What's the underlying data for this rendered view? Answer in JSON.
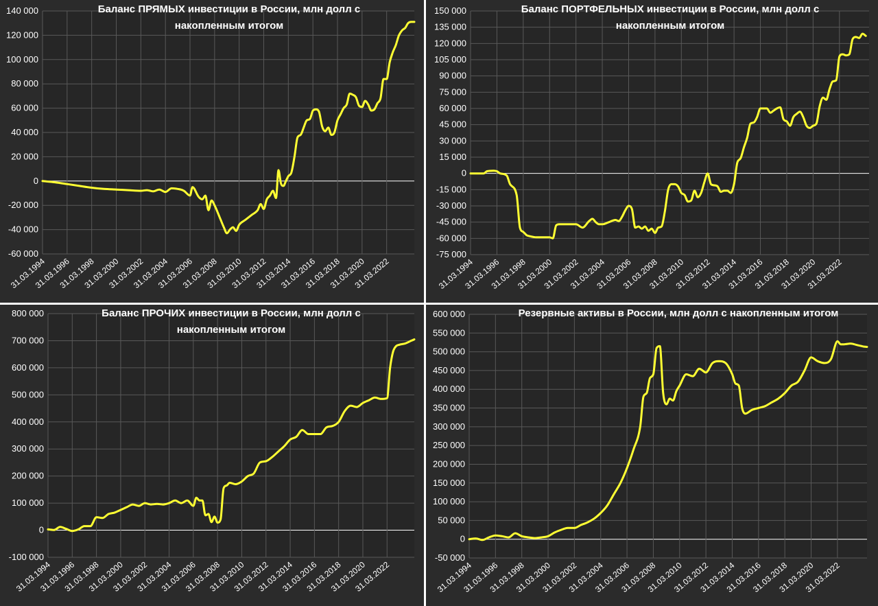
{
  "chart_data": [
    {
      "id": "direct",
      "type": "line",
      "title_lines": [
        "Баланс ПРЯМЫХ инвестиции в России, млн долл с",
        "накопленным итогом"
      ],
      "ylim": [
        -60000,
        140000
      ],
      "ystep": 20000,
      "ytick_labels": [
        "-60 000",
        "-40 000",
        "-20 000",
        "0",
        "20 000",
        "40 000",
        "60 000",
        "80 000",
        "100 000",
        "120 000",
        "140 000"
      ],
      "xlim": [
        1994.0,
        2024.25
      ],
      "x_tick_labels": [
        "31.03.1994",
        "31.03.1996",
        "31.03.1998",
        "31.03.2000",
        "31.03.2002",
        "31.03.2004",
        "31.03.2006",
        "31.03.2008",
        "31.03.2010",
        "31.03.2012",
        "31.03.2014",
        "31.03.2016",
        "31.03.2018",
        "31.03.2020",
        "31.03.2022"
      ],
      "x_tick_years": [
        1994,
        1996,
        1998,
        2000,
        2002,
        2004,
        2006,
        2008,
        2010,
        2012,
        2014,
        2016,
        2018,
        2020,
        2022
      ],
      "grid": true,
      "series": [
        {
          "color": "#ffff33",
          "x": [
            1994.0,
            1995.0,
            1996.0,
            1997.0,
            1998.0,
            1999.0,
            2000.0,
            2001.0,
            2002.0,
            2002.5,
            2003.0,
            2003.5,
            2004.0,
            2004.5,
            2005.0,
            2005.5,
            2006.0,
            2006.2,
            2006.7,
            2007.0,
            2007.25,
            2007.5,
            2007.75,
            2008.0,
            2008.5,
            2008.75,
            2009.0,
            2009.25,
            2009.5,
            2009.75,
            2010.0,
            2010.5,
            2011.0,
            2011.5,
            2011.75,
            2012.0,
            2012.25,
            2012.5,
            2012.75,
            2013.0,
            2013.2,
            2013.4,
            2013.6,
            2013.8,
            2014.0,
            2014.25,
            2014.5,
            2014.75,
            2015.0,
            2015.25,
            2015.5,
            2015.75,
            2016.0,
            2016.25,
            2016.5,
            2016.75,
            2017.0,
            2017.25,
            2017.5,
            2017.75,
            2018.0,
            2018.25,
            2018.5,
            2018.75,
            2019.0,
            2019.25,
            2019.5,
            2019.75,
            2020.0,
            2020.25,
            2020.5,
            2020.75,
            2021.0,
            2021.25,
            2021.5,
            2021.75,
            2022.0,
            2022.25,
            2022.5,
            2022.75,
            2023.0,
            2023.25,
            2023.5,
            2023.75,
            2024.0,
            2024.25
          ],
          "values": [
            0,
            -1000,
            -2500,
            -4000,
            -5500,
            -6500,
            -7000,
            -7500,
            -8000,
            -7500,
            -8500,
            -7000,
            -9000,
            -6000,
            -6500,
            -8000,
            -12000,
            -5000,
            -13000,
            -15000,
            -12000,
            -24000,
            -16000,
            -20000,
            -32000,
            -38000,
            -43000,
            -40000,
            -38000,
            -41000,
            -36000,
            -32000,
            -28000,
            -24000,
            -19000,
            -23000,
            -15000,
            -12000,
            -8000,
            -14000,
            9000,
            -2000,
            -4000,
            0,
            4000,
            7000,
            20000,
            36000,
            38000,
            44000,
            50000,
            51000,
            58000,
            59000,
            57000,
            45000,
            41000,
            44000,
            38000,
            40000,
            50000,
            55000,
            60000,
            63000,
            72000,
            71000,
            69000,
            62000,
            61000,
            66000,
            63000,
            58000,
            59000,
            64000,
            68000,
            84000,
            84000,
            98000,
            106000,
            112000,
            120000,
            124000,
            126000,
            130000,
            131000,
            131000
          ]
        }
      ]
    },
    {
      "id": "portfolio",
      "type": "line",
      "title_lines": [
        "Баланс ПОРТФЕЛЬНЫХ инвестиции в России, млн долл с",
        "накопленным итогом"
      ],
      "ylim": [
        -75000,
        150000
      ],
      "ystep": 15000,
      "ytick_labels": [
        "-75 000",
        "-60 000",
        "-45 000",
        "-30 000",
        "-15 000",
        "0",
        "15 000",
        "30 000",
        "45 000",
        "60 000",
        "75 000",
        "90 000",
        "105 000",
        "120 000",
        "135 000",
        "150 000"
      ],
      "xlim": [
        1994.0,
        2024.25
      ],
      "x_tick_labels": [
        "31.03.1994",
        "31.03.1996",
        "31.03.1998",
        "31.03.2000",
        "31.03.2002",
        "31.03.2004",
        "31.03.2006",
        "31.03.2008",
        "31.03.2010",
        "31.03.2012",
        "31.03.2014",
        "31.03.2016",
        "31.03.2018",
        "31.03.2020",
        "31.03.2022"
      ],
      "x_tick_years": [
        1994,
        1996,
        1998,
        2000,
        2002,
        2004,
        2006,
        2008,
        2010,
        2012,
        2014,
        2016,
        2018,
        2020,
        2022
      ],
      "grid": true,
      "series": [
        {
          "color": "#ffff33",
          "x": [
            1994.0,
            1995.0,
            1995.25,
            1995.75,
            1996.0,
            1996.25,
            1996.75,
            1997.0,
            1997.5,
            1997.75,
            1998.0,
            1998.25,
            1998.5,
            1999.0,
            1999.5,
            2000.0,
            2000.25,
            2000.5,
            2000.75,
            2001.0,
            2001.5,
            2002.0,
            2002.5,
            2003.0,
            2003.25,
            2003.5,
            2003.75,
            2004.0,
            2004.5,
            2005.0,
            2005.25,
            2005.5,
            2005.75,
            2006.0,
            2006.25,
            2006.5,
            2006.75,
            2007.0,
            2007.25,
            2007.5,
            2007.75,
            2008.0,
            2008.25,
            2008.5,
            2008.75,
            2009.0,
            2009.25,
            2009.5,
            2009.75,
            2010.0,
            2010.25,
            2010.5,
            2010.75,
            2011.0,
            2011.25,
            2011.5,
            2011.75,
            2012.0,
            2012.25,
            2012.5,
            2012.75,
            2013.0,
            2013.25,
            2013.5,
            2013.75,
            2014.0,
            2014.25,
            2014.5,
            2014.75,
            2015.0,
            2015.25,
            2015.5,
            2015.75,
            2016.0,
            2016.25,
            2016.5,
            2016.75,
            2017.0,
            2017.25,
            2017.5,
            2017.75,
            2018.0,
            2018.25,
            2018.5,
            2018.75,
            2019.0,
            2019.25,
            2019.5,
            2019.75,
            2020.0,
            2020.25,
            2020.5,
            2020.75,
            2021.0,
            2021.25,
            2021.5,
            2021.75,
            2022.0,
            2022.25,
            2022.5,
            2022.75,
            2023.0,
            2023.25,
            2023.5,
            2023.75,
            2024.0
          ],
          "values": [
            0,
            0,
            2000,
            2500,
            2000,
            0,
            -2000,
            -10000,
            -20000,
            -50000,
            -54000,
            -57000,
            -58000,
            -59000,
            -59000,
            -59000,
            -60000,
            -48000,
            -47000,
            -47000,
            -47000,
            -47000,
            -50000,
            -44000,
            -42000,
            -45000,
            -47000,
            -47000,
            -45000,
            -43000,
            -44000,
            -40000,
            -34000,
            -30000,
            -33000,
            -50000,
            -49000,
            -51000,
            -49000,
            -53000,
            -51000,
            -55000,
            -50000,
            -49000,
            -35000,
            -15000,
            -10000,
            -10000,
            -12000,
            -18000,
            -20000,
            -26000,
            -25000,
            -16000,
            -22000,
            -18000,
            -8000,
            0,
            -10000,
            -11000,
            -12000,
            -17000,
            -16000,
            -16000,
            -18000,
            -10000,
            10000,
            14000,
            24000,
            33000,
            46000,
            47000,
            52000,
            60000,
            60000,
            60000,
            56000,
            58000,
            60000,
            61000,
            50000,
            48000,
            44000,
            52000,
            55000,
            57000,
            52000,
            44000,
            42000,
            44000,
            46000,
            62000,
            70000,
            68000,
            78000,
            85000,
            86000,
            108000,
            110000,
            109000,
            110000,
            124000,
            126000,
            125000,
            129000,
            127000
          ]
        }
      ]
    },
    {
      "id": "other",
      "type": "line",
      "title_lines": [
        "Баланс ПРОЧИХ инвестиции в России, млн долл с",
        "накопленным итогом"
      ],
      "ylim": [
        -100000,
        800000
      ],
      "ystep": 100000,
      "ytick_labels": [
        "-100 000",
        "0",
        "100 000",
        "200 000",
        "300 000",
        "400 000",
        "500 000",
        "600 000",
        "700 000",
        "800 000"
      ],
      "xlim": [
        1994.0,
        2024.25
      ],
      "x_tick_labels": [
        "31.03.1994",
        "31.03.1996",
        "31.03.1998",
        "31.03.2000",
        "31.03.2002",
        "31.03.2004",
        "31.03.2006",
        "31.03.2008",
        "31.03.2010",
        "31.03.2012",
        "31.03.2014",
        "31.03.2016",
        "31.03.2018",
        "31.03.2020",
        "31.03.2022"
      ],
      "x_tick_years": [
        1994,
        1996,
        1998,
        2000,
        2002,
        2004,
        2006,
        2008,
        2010,
        2012,
        2014,
        2016,
        2018,
        2020,
        2022
      ],
      "grid": true,
      "series": [
        {
          "color": "#ffff33",
          "x": [
            1994.0,
            1994.5,
            1995.0,
            1995.5,
            1996.0,
            1996.5,
            1997.0,
            1997.5,
            1998.0,
            1998.5,
            1999.0,
            1999.5,
            2000.0,
            2000.5,
            2001.0,
            2001.5,
            2002.0,
            2002.5,
            2003.0,
            2003.5,
            2004.0,
            2004.5,
            2005.0,
            2005.5,
            2006.0,
            2006.25,
            2006.5,
            2006.75,
            2007.0,
            2007.25,
            2007.5,
            2007.75,
            2008.0,
            2008.25,
            2008.5,
            2008.75,
            2009.0,
            2009.5,
            2010.0,
            2010.5,
            2011.0,
            2011.5,
            2012.0,
            2012.5,
            2013.0,
            2013.5,
            2014.0,
            2014.5,
            2015.0,
            2015.5,
            2016.0,
            2016.5,
            2017.0,
            2017.5,
            2018.0,
            2018.5,
            2019.0,
            2019.5,
            2020.0,
            2020.5,
            2021.0,
            2021.5,
            2022.0,
            2022.25,
            2022.5,
            2022.75,
            2023.0,
            2023.5,
            2024.0,
            2024.25
          ],
          "values": [
            3000,
            1000,
            12000,
            5000,
            -3000,
            3000,
            15000,
            15000,
            48000,
            45000,
            60000,
            65000,
            75000,
            85000,
            95000,
            90000,
            100000,
            95000,
            97000,
            95000,
            100000,
            110000,
            100000,
            110000,
            90000,
            120000,
            110000,
            110000,
            55000,
            60000,
            30000,
            50000,
            28000,
            40000,
            155000,
            165000,
            175000,
            170000,
            180000,
            200000,
            210000,
            250000,
            255000,
            270000,
            290000,
            310000,
            335000,
            345000,
            370000,
            355000,
            355000,
            355000,
            380000,
            385000,
            400000,
            440000,
            460000,
            455000,
            470000,
            480000,
            490000,
            485000,
            488000,
            600000,
            660000,
            680000,
            685000,
            690000,
            700000,
            705000
          ]
        }
      ]
    },
    {
      "id": "reserves",
      "type": "line",
      "title_lines": [
        "Резервные активы в России, млн долл с накопленным итогом"
      ],
      "ylim": [
        -50000,
        600000
      ],
      "ystep": 50000,
      "ytick_labels": [
        "-50 000",
        "0",
        "50 000",
        "100 000",
        "150 000",
        "200 000",
        "250 000",
        "300 000",
        "350 000",
        "400 000",
        "450 000",
        "500 000",
        "550 000",
        "600 000"
      ],
      "xlim": [
        1994.0,
        2024.25
      ],
      "x_tick_labels": [
        "31.03.1994",
        "31.03.1996",
        "31.03.1998",
        "31.03.2000",
        "31.03.2002",
        "31.03.2004",
        "31.03.2006",
        "31.03.2008",
        "31.03.2010",
        "31.03.2012",
        "31.03.2014",
        "31.03.2016",
        "31.03.2018",
        "31.03.2020",
        "31.03.2022"
      ],
      "x_tick_years": [
        1994,
        1996,
        1998,
        2000,
        2002,
        2004,
        2006,
        2008,
        2010,
        2012,
        2014,
        2016,
        2018,
        2020,
        2022
      ],
      "grid": true,
      "series": [
        {
          "color": "#ffff33",
          "x": [
            1994.0,
            1994.5,
            1995.0,
            1995.5,
            1996.0,
            1996.5,
            1997.0,
            1997.5,
            1998.0,
            1998.5,
            1999.0,
            1999.5,
            2000.0,
            2000.5,
            2001.0,
            2001.5,
            2002.0,
            2002.5,
            2003.0,
            2003.5,
            2004.0,
            2004.5,
            2005.0,
            2005.5,
            2006.0,
            2006.5,
            2007.0,
            2007.25,
            2007.5,
            2007.75,
            2008.0,
            2008.25,
            2008.5,
            2008.75,
            2009.0,
            2009.25,
            2009.5,
            2009.75,
            2010.0,
            2010.5,
            2011.0,
            2011.5,
            2012.0,
            2012.5,
            2013.0,
            2013.5,
            2014.0,
            2014.25,
            2014.5,
            2014.75,
            2015.0,
            2015.5,
            2016.0,
            2016.5,
            2017.0,
            2017.5,
            2018.0,
            2018.5,
            2019.0,
            2019.5,
            2020.0,
            2020.5,
            2021.0,
            2021.5,
            2022.0,
            2022.25,
            2022.5,
            2023.0,
            2023.5,
            2024.0,
            2024.25
          ],
          "values": [
            0,
            2000,
            -2000,
            5000,
            10000,
            8000,
            5000,
            16000,
            8000,
            5000,
            3000,
            5000,
            8000,
            18000,
            25000,
            30000,
            30000,
            38000,
            45000,
            55000,
            70000,
            90000,
            120000,
            150000,
            190000,
            240000,
            300000,
            380000,
            390000,
            430000,
            440000,
            510000,
            515000,
            390000,
            360000,
            375000,
            370000,
            395000,
            410000,
            440000,
            435000,
            455000,
            445000,
            470000,
            475000,
            470000,
            440000,
            415000,
            410000,
            350000,
            335000,
            345000,
            350000,
            355000,
            365000,
            375000,
            390000,
            410000,
            420000,
            450000,
            485000,
            475000,
            470000,
            480000,
            528000,
            520000,
            520000,
            522000,
            518000,
            514000,
            513000
          ]
        }
      ]
    }
  ]
}
